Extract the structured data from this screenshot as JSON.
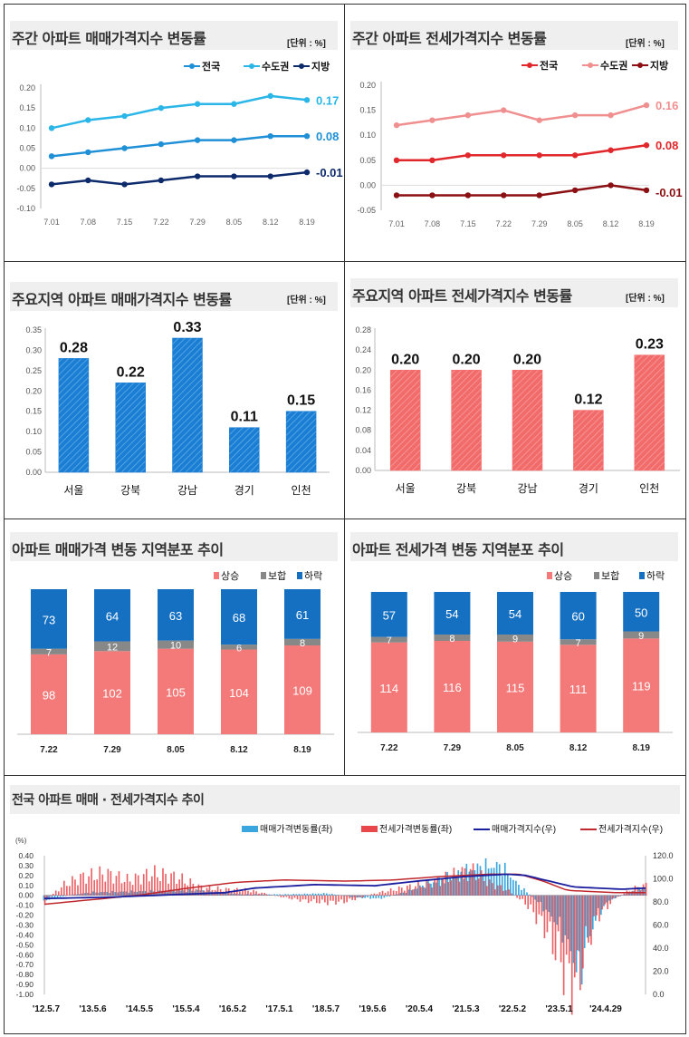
{
  "panels": [
    {
      "title": "주간 아파트 매매가격지수 변동률",
      "unit": "[단위 : %]"
    },
    {
      "title": "주간 아파트 전세가격지수 변동률",
      "unit": "[단위 : %]"
    },
    {
      "title": "주요지역 아파트 매매가격지수 변동률",
      "unit": "[단위 : %]"
    },
    {
      "title": "주요지역 아파트 전세가격지수 변동률",
      "unit": "[단위 : %]"
    },
    {
      "title": "아파트 매매가격 변동 지역분포 추이"
    },
    {
      "title": "아파트 전세가격 변동 지역분포 추이"
    },
    {
      "title": "전국 아파트 매매 · 전세가격지수 추이"
    }
  ],
  "chart_data": [
    {
      "type": "line",
      "title": "주간 아파트 매매가격지수 변동률",
      "x": [
        "7.01",
        "7.08",
        "7.15",
        "7.22",
        "7.29",
        "8.05",
        "8.12",
        "8.19"
      ],
      "ylim": [
        -0.1,
        0.2
      ],
      "yticks": [
        "0.20",
        "0.15",
        "0.10",
        "0.05",
        "0.00",
        "-0.05",
        "-0.10"
      ],
      "series": [
        {
          "name": "전국",
          "values": [
            0.03,
            0.04,
            0.05,
            0.06,
            0.07,
            0.07,
            0.08,
            0.08
          ],
          "end_label": "0.08",
          "color": "#1f8fd6"
        },
        {
          "name": "수도권",
          "values": [
            0.1,
            0.12,
            0.13,
            0.15,
            0.16,
            0.16,
            0.18,
            0.17
          ],
          "end_label": "0.17",
          "color": "#2bb6e8"
        },
        {
          "name": "지방",
          "values": [
            -0.04,
            -0.03,
            -0.04,
            -0.03,
            -0.02,
            -0.02,
            -0.02,
            -0.01
          ],
          "end_label": "-0.01",
          "color": "#0d2a6b"
        }
      ]
    },
    {
      "type": "line",
      "title": "주간 아파트 전세가격지수 변동률",
      "x": [
        "7.01",
        "7.08",
        "7.15",
        "7.22",
        "7.29",
        "8.05",
        "8.12",
        "8.19"
      ],
      "ylim": [
        -0.05,
        0.2
      ],
      "yticks": [
        "0.20",
        "0.15",
        "0.10",
        "0.05",
        "0.00",
        "-0.05"
      ],
      "series": [
        {
          "name": "전국",
          "values": [
            0.05,
            0.05,
            0.06,
            0.06,
            0.06,
            0.06,
            0.07,
            0.08
          ],
          "end_label": "0.08",
          "color": "#e0272b"
        },
        {
          "name": "수도권",
          "values": [
            0.12,
            0.13,
            0.14,
            0.15,
            0.13,
            0.14,
            0.14,
            0.16
          ],
          "end_label": "0.16",
          "color": "#f08f8f"
        },
        {
          "name": "지방",
          "values": [
            -0.02,
            -0.02,
            -0.02,
            -0.02,
            -0.02,
            -0.01,
            0.0,
            -0.01
          ],
          "end_label": "-0.01",
          "color": "#8b1014"
        }
      ]
    },
    {
      "type": "bar",
      "title": "주요지역 아파트 매매가격지수 변동률",
      "categories": [
        "서울",
        "강북",
        "강남",
        "경기",
        "인천"
      ],
      "values": [
        0.28,
        0.22,
        0.33,
        0.11,
        0.15
      ],
      "labels": [
        "0.28",
        "0.22",
        "0.33",
        "0.11",
        "0.15"
      ],
      "ylim": [
        0,
        0.35
      ],
      "yticks": [
        "0.35",
        "0.30",
        "0.25",
        "0.20",
        "0.15",
        "0.10",
        "0.05",
        "0.00"
      ],
      "color": "#1a7fd4"
    },
    {
      "type": "bar",
      "title": "주요지역 아파트 전세가격지수 변동률",
      "categories": [
        "서울",
        "강북",
        "강남",
        "경기",
        "인천"
      ],
      "values": [
        0.2,
        0.2,
        0.2,
        0.12,
        0.23
      ],
      "labels": [
        "0.20",
        "0.20",
        "0.20",
        "0.12",
        "0.23"
      ],
      "ylim": [
        0,
        0.28
      ],
      "yticks": [
        "0.28",
        "0.24",
        "0.20",
        "0.16",
        "0.12",
        "0.08",
        "0.04",
        "0.00"
      ],
      "color": "#f26b6b"
    },
    {
      "type": "bar",
      "stacked": true,
      "title": "아파트 매매가격 변동 지역분포 추이",
      "categories": [
        "7.22",
        "7.29",
        "8.05",
        "8.12",
        "8.19"
      ],
      "series": [
        {
          "name": "상승",
          "values": [
            98,
            102,
            105,
            104,
            109
          ],
          "color": "#f47a7a"
        },
        {
          "name": "보합",
          "values": [
            7,
            12,
            10,
            6,
            8
          ],
          "color": "#888888"
        },
        {
          "name": "하락",
          "values": [
            73,
            64,
            63,
            68,
            61
          ],
          "color": "#1570c1"
        }
      ]
    },
    {
      "type": "bar",
      "stacked": true,
      "title": "아파트 전세가격 변동 지역분포 추이",
      "categories": [
        "7.22",
        "7.29",
        "8.05",
        "8.12",
        "8.19"
      ],
      "series": [
        {
          "name": "상승",
          "values": [
            114,
            116,
            115,
            111,
            119
          ],
          "color": "#f47a7a"
        },
        {
          "name": "보합",
          "values": [
            7,
            8,
            9,
            7,
            9
          ],
          "color": "#888888"
        },
        {
          "name": "하락",
          "values": [
            57,
            54,
            54,
            60,
            50
          ],
          "color": "#1570c1"
        }
      ]
    },
    {
      "type": "bar",
      "title": "전국 아파트 매매 · 전세가격지수 추이",
      "y_left_label": "(%)",
      "ylim_left": [
        -1.0,
        0.4
      ],
      "yticks_left": [
        "0.40",
        "0.30",
        "0.20",
        "0.10",
        "0.00",
        "-0.10",
        "-0.20",
        "-0.30",
        "-0.40",
        "-0.50",
        "-0.60",
        "-0.70",
        "-0.80",
        "-0.90",
        "-1.00"
      ],
      "ylim_right": [
        0,
        120
      ],
      "yticks_right": [
        "120.0",
        "100.0",
        "80.0",
        "60.0",
        "40.0",
        "20.0",
        "0.0"
      ],
      "x_ticks": [
        "'12.5.7",
        "'13.5.6",
        "'14.5.5",
        "'15.5.4",
        "'16.5.2",
        "'17.5.1",
        "'18.5.7",
        "'19.5.6",
        "'20.5.4",
        "'21.5.3",
        "'22.5.2",
        "'23.5.1",
        "'24.4.29"
      ],
      "legend": [
        "매매가격변동률(좌)",
        "전세가격변동률(좌)",
        "매매가격지수(우)",
        "전세가격지수(우)"
      ],
      "colors": {
        "sale_rate": "#3aa6dd",
        "jeonse_rate": "#e8474b",
        "sale_index": "#1b1f9e",
        "jeonse_index": "#c0282e"
      },
      "anchors_sale_rate": [
        [
          0,
          -0.05
        ],
        [
          0.04,
          0.0
        ],
        [
          0.08,
          0.03
        ],
        [
          0.16,
          0.04
        ],
        [
          0.26,
          0.05
        ],
        [
          0.33,
          0.01
        ],
        [
          0.4,
          0.01
        ],
        [
          0.47,
          0.02
        ],
        [
          0.52,
          -0.02
        ],
        [
          0.56,
          -0.03
        ],
        [
          0.6,
          0.03
        ],
        [
          0.66,
          0.16
        ],
        [
          0.72,
          0.28
        ],
        [
          0.76,
          0.3
        ],
        [
          0.79,
          0.1
        ],
        [
          0.82,
          -0.05
        ],
        [
          0.84,
          -0.18
        ],
        [
          0.86,
          -0.32
        ],
        [
          0.88,
          -0.6
        ],
        [
          0.89,
          -0.82
        ],
        [
          0.9,
          -0.55
        ],
        [
          0.92,
          -0.2
        ],
        [
          0.94,
          -0.05
        ],
        [
          0.97,
          0.02
        ],
        [
          1.0,
          0.08
        ]
      ],
      "anchors_jeonse_rate": [
        [
          0,
          -0.06
        ],
        [
          0.03,
          0.1
        ],
        [
          0.06,
          0.18
        ],
        [
          0.1,
          0.22
        ],
        [
          0.14,
          0.15
        ],
        [
          0.18,
          0.22
        ],
        [
          0.22,
          0.18
        ],
        [
          0.26,
          0.08
        ],
        [
          0.3,
          0.06
        ],
        [
          0.34,
          0.05
        ],
        [
          0.38,
          0.0
        ],
        [
          0.43,
          -0.05
        ],
        [
          0.47,
          -0.07
        ],
        [
          0.5,
          -0.06
        ],
        [
          0.55,
          0.02
        ],
        [
          0.6,
          0.08
        ],
        [
          0.64,
          0.12
        ],
        [
          0.68,
          0.2
        ],
        [
          0.71,
          0.25
        ],
        [
          0.74,
          0.12
        ],
        [
          0.77,
          0.05
        ],
        [
          0.8,
          -0.08
        ],
        [
          0.83,
          -0.3
        ],
        [
          0.855,
          -0.6
        ],
        [
          0.87,
          -0.85
        ],
        [
          0.885,
          -0.88
        ],
        [
          0.9,
          -0.5
        ],
        [
          0.92,
          -0.2
        ],
        [
          0.95,
          -0.02
        ],
        [
          0.98,
          0.07
        ],
        [
          1.0,
          0.1
        ]
      ],
      "anchors_sale_index": [
        [
          0,
          83
        ],
        [
          0.1,
          84
        ],
        [
          0.2,
          86
        ],
        [
          0.3,
          88
        ],
        [
          0.35,
          92
        ],
        [
          0.45,
          95
        ],
        [
          0.55,
          94
        ],
        [
          0.62,
          98
        ],
        [
          0.7,
          102
        ],
        [
          0.77,
          104
        ],
        [
          0.8,
          103
        ],
        [
          0.84,
          98
        ],
        [
          0.88,
          93
        ],
        [
          0.92,
          92
        ],
        [
          0.96,
          91
        ],
        [
          1.0,
          92
        ]
      ],
      "anchors_jeonse_index": [
        [
          0,
          78
        ],
        [
          0.08,
          82
        ],
        [
          0.16,
          86
        ],
        [
          0.24,
          92
        ],
        [
          0.32,
          97
        ],
        [
          0.4,
          99
        ],
        [
          0.5,
          98
        ],
        [
          0.58,
          99
        ],
        [
          0.66,
          102
        ],
        [
          0.74,
          104
        ],
        [
          0.79,
          104
        ],
        [
          0.83,
          98
        ],
        [
          0.87,
          90
        ],
        [
          0.91,
          89
        ],
        [
          0.95,
          88
        ],
        [
          1.0,
          88
        ]
      ]
    }
  ]
}
